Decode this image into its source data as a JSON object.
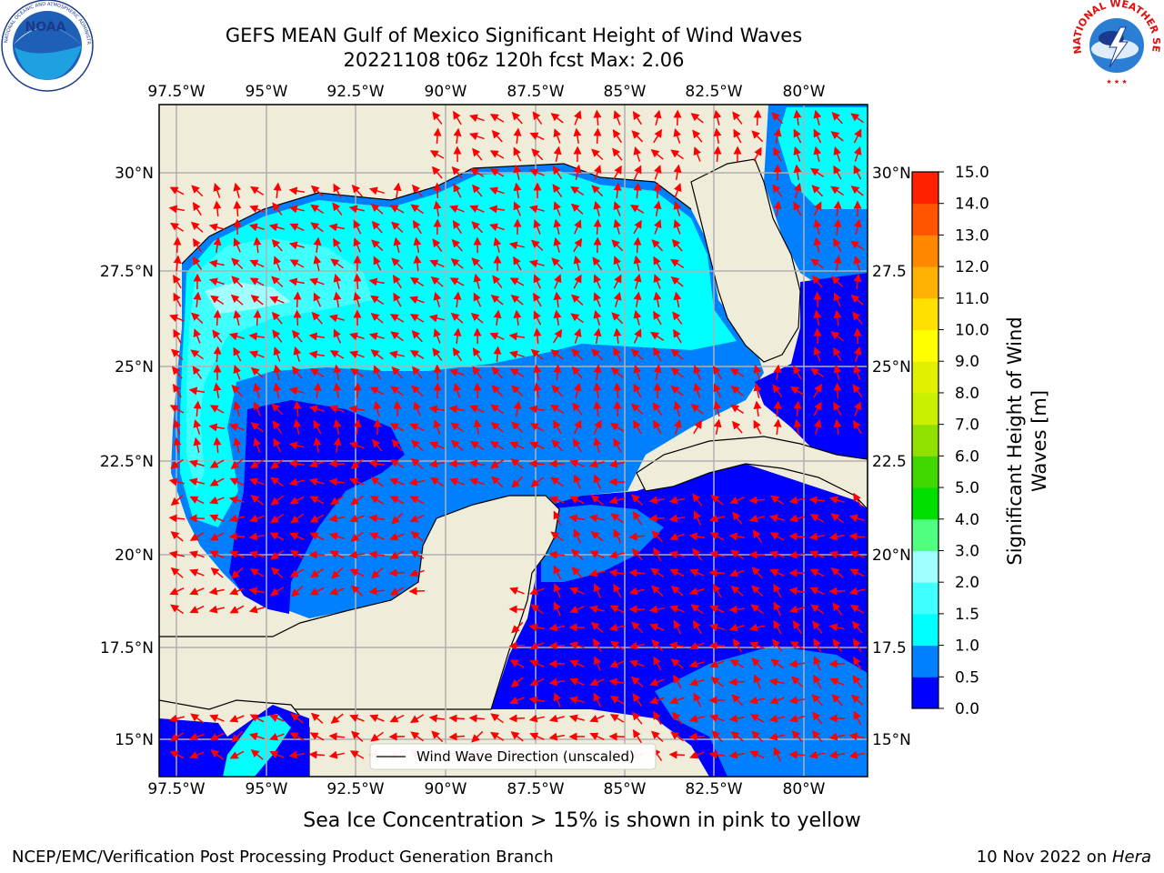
{
  "title": {
    "line1": "GEFS MEAN Gulf of Mexico Significant Height of Wind Waves",
    "line2": "20221108 t06z 120h fcst   Max: 2.06"
  },
  "map": {
    "lon_labels": [
      "97.5°W",
      "95°W",
      "92.5°W",
      "90°W",
      "87.5°W",
      "85°W",
      "82.5°W",
      "80°W"
    ],
    "lat_labels": [
      "30°N",
      "27.5°N",
      "25°N",
      "22.5°N",
      "20°N",
      "17.5°N",
      "15°N"
    ],
    "lat_labels_right": [
      "30°N",
      "27.5",
      "25°N",
      "22.5",
      "20°N",
      "17.5",
      "15°N"
    ],
    "legend_label": "Wind Wave Direction (unscaled)",
    "land_color": "#efedd9",
    "grid_color": "#b0b0b0",
    "arrow_color": "#ff0000"
  },
  "colorbar": {
    "label_line1": "Significant Height of Wind",
    "label_line2": "Waves [m]",
    "ticks": [
      "0.0",
      "0.5",
      "1.0",
      "1.5",
      "2.0",
      "3.0",
      "4.0",
      "5.0",
      "6.0",
      "7.0",
      "8.0",
      "9.0",
      "10.0",
      "11.0",
      "12.0",
      "13.0",
      "14.0",
      "15.0"
    ],
    "colors": [
      "#0000ff",
      "#0080ff",
      "#00ffff",
      "#40ffff",
      "#a0ffff",
      "#50ff80",
      "#00e000",
      "#40d800",
      "#90e000",
      "#c8f000",
      "#e0f000",
      "#ffff00",
      "#ffe000",
      "#ffb000",
      "#ff8800",
      "#ff5500",
      "#ff2000",
      "#ff0000"
    ]
  },
  "logos": {
    "noaa_text": "NOAA",
    "noaa_ring": "NATIONAL OCEANIC AND ATMOSPHERIC ADMINISTRATION · U.S. DEPARTMENT OF COMMERCE",
    "nws_ring": "NATIONAL WEATHER SERVICE"
  },
  "footer": {
    "note": "Sea Ice Concentration > 15% is shown in pink to yellow",
    "credit_left": "NCEP/EMC/Verification Post Processing Product Generation Branch",
    "credit_right_prefix": "10 Nov 2022 on ",
    "credit_right_host": "Hera"
  }
}
